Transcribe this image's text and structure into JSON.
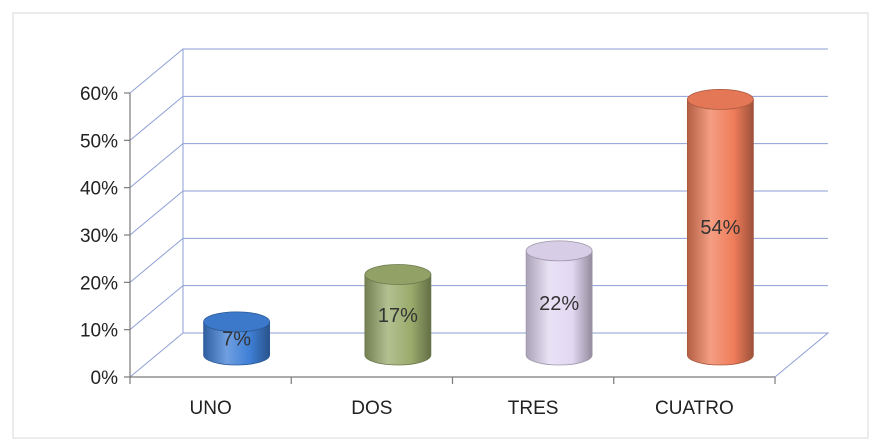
{
  "chart_data": {
    "type": "bar",
    "style": "3d-cylinder",
    "categories": [
      "UNO",
      "DOS",
      "TRES",
      "CUATRO"
    ],
    "values": [
      7,
      17,
      22,
      54
    ],
    "value_unit": "%",
    "data_labels": [
      "7%",
      "17%",
      "22%",
      "54%"
    ],
    "colors": [
      "#3f7fd6",
      "#9aab6c",
      "#e2d8f2",
      "#f07d5a"
    ],
    "ylim": [
      0,
      60
    ],
    "yticks": [
      "0%",
      "10%",
      "20%",
      "30%",
      "40%",
      "50%",
      "60%"
    ],
    "grid": true,
    "legend": "none",
    "title": "",
    "xlabel": "",
    "ylabel": ""
  }
}
